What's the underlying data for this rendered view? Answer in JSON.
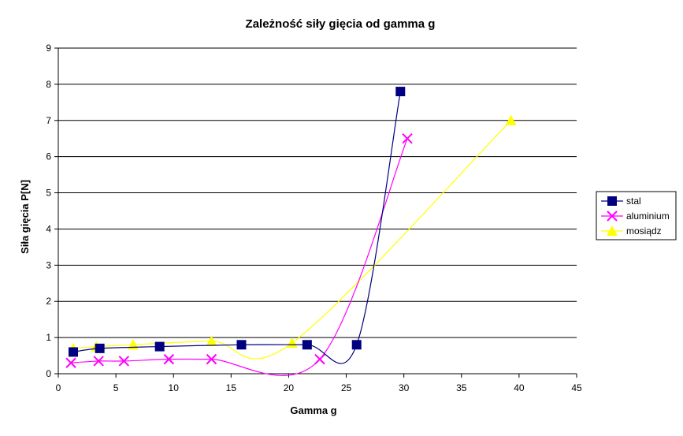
{
  "chart_data": {
    "type": "scatter",
    "title": "Zależność siły gięcia od gamma g",
    "xlabel": "Gamma g",
    "ylabel": "Siła gięcia P[N]",
    "xlim": [
      0,
      45
    ],
    "ylim": [
      0,
      9
    ],
    "xticks": [
      "0",
      "5",
      "10",
      "15",
      "20",
      "25",
      "30",
      "35",
      "40",
      "45"
    ],
    "yticks": [
      "0",
      "1",
      "2",
      "3",
      "4",
      "5",
      "6",
      "7",
      "8",
      "9"
    ],
    "grid": "horizontal",
    "smoothed_lines": true,
    "legend_position": "right",
    "series": [
      {
        "name": "stal",
        "color": "#000080",
        "marker": "square",
        "points": [
          [
            1.3,
            0.6
          ],
          [
            3.6,
            0.7
          ],
          [
            8.8,
            0.75
          ],
          [
            15.9,
            0.8
          ],
          [
            21.6,
            0.8
          ],
          [
            25.9,
            0.8
          ],
          [
            29.7,
            7.8
          ]
        ]
      },
      {
        "name": "aluminium",
        "color": "#FF00FF",
        "marker": "x",
        "points": [
          [
            1.1,
            0.3
          ],
          [
            3.5,
            0.35
          ],
          [
            5.7,
            0.35
          ],
          [
            9.6,
            0.4
          ],
          [
            13.3,
            0.4
          ],
          [
            22.7,
            0.4
          ],
          [
            30.3,
            6.5
          ]
        ]
      },
      {
        "name": "mosiądz",
        "color": "#FFFF00",
        "marker": "triangle",
        "points": [
          [
            1.3,
            0.7
          ],
          [
            3.3,
            0.75
          ],
          [
            6.5,
            0.8
          ],
          [
            13.3,
            0.9
          ],
          [
            20.3,
            0.85
          ],
          [
            39.3,
            7.0
          ]
        ]
      }
    ]
  }
}
